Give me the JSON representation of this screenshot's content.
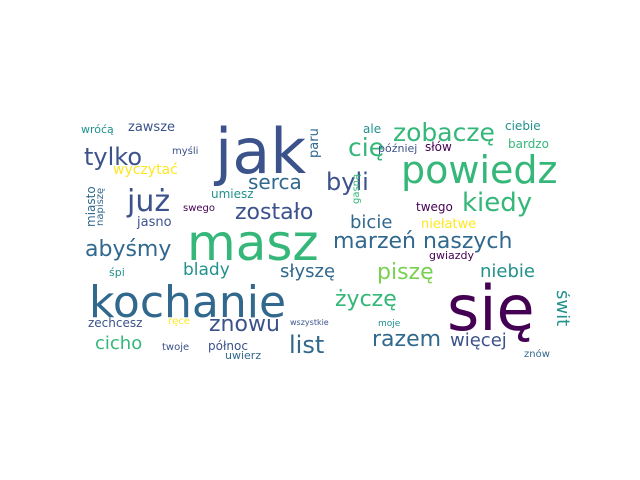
{
  "palette": {
    "dark_purple": "#440154",
    "indigo": "#3b528b",
    "blue": "#31688e",
    "teal": "#21918c",
    "green": "#35b779",
    "lime": "#7ad151",
    "yellow": "#fde725"
  },
  "words": [
    {
      "text": "jak",
      "color": "#3b528b"
    },
    {
      "text": "masz",
      "color": "#35b779"
    },
    {
      "text": "kochanie",
      "color": "#31688e"
    },
    {
      "text": "się",
      "color": "#440154"
    },
    {
      "text": "powiedz",
      "color": "#35b779"
    },
    {
      "text": "już",
      "color": "#3b528b"
    },
    {
      "text": "zobaczę",
      "color": "#35b779"
    },
    {
      "text": "tylko",
      "color": "#3b528b"
    },
    {
      "text": "cię",
      "color": "#35b779"
    },
    {
      "text": "byli",
      "color": "#3b528b"
    },
    {
      "text": "kiedy",
      "color": "#35b779"
    },
    {
      "text": "zostało",
      "color": "#3b528b"
    },
    {
      "text": "serca",
      "color": "#31688e"
    },
    {
      "text": "abyśmy",
      "color": "#31688e"
    },
    {
      "text": "marzeń naszych",
      "color": "#31688e"
    },
    {
      "text": "bicie",
      "color": "#31688e"
    },
    {
      "text": "piszę",
      "color": "#7ad151"
    },
    {
      "text": "życzę",
      "color": "#35b779"
    },
    {
      "text": "znowu",
      "color": "#3b528b"
    },
    {
      "text": "list",
      "color": "#31688e"
    },
    {
      "text": "razem",
      "color": "#31688e"
    },
    {
      "text": "cicho",
      "color": "#35b779"
    },
    {
      "text": "więcej",
      "color": "#3b528b"
    },
    {
      "text": "niebie",
      "color": "#21918c"
    },
    {
      "text": "słyszę",
      "color": "#31688e"
    },
    {
      "text": "blady",
      "color": "#21918c"
    },
    {
      "text": "świt",
      "color": "#21918c"
    },
    {
      "text": "zawsze",
      "color": "#3b528b"
    },
    {
      "text": "wróćą",
      "color": "#21918c"
    },
    {
      "text": "myśli",
      "color": "#3b528b"
    },
    {
      "text": "wyczytać",
      "color": "#fde725"
    },
    {
      "text": "miasto",
      "color": "#31688e"
    },
    {
      "text": "napiszę",
      "color": "#31688e"
    },
    {
      "text": "jasno",
      "color": "#3b528b"
    },
    {
      "text": "swego",
      "color": "#440154"
    },
    {
      "text": "umiesz",
      "color": "#21918c"
    },
    {
      "text": "paru",
      "color": "#31688e"
    },
    {
      "text": "ale",
      "color": "#21918c"
    },
    {
      "text": "później",
      "color": "#3b528b"
    },
    {
      "text": "słów",
      "color": "#440154"
    },
    {
      "text": "ciebie",
      "color": "#21918c"
    },
    {
      "text": "bardzo",
      "color": "#35b779"
    },
    {
      "text": "gasną",
      "color": "#35b779"
    },
    {
      "text": "twego",
      "color": "#440154"
    },
    {
      "text": "niełatwe",
      "color": "#fde725"
    },
    {
      "text": "gwiazdy",
      "color": "#440154"
    },
    {
      "text": "śpi",
      "color": "#21918c"
    },
    {
      "text": "zechcesz",
      "color": "#3b528b"
    },
    {
      "text": "ręce",
      "color": "#fde725"
    },
    {
      "text": "twoje",
      "color": "#3b528b"
    },
    {
      "text": "północ",
      "color": "#3b528b"
    },
    {
      "text": "uwierz",
      "color": "#31688e"
    },
    {
      "text": "wszystkie",
      "color": "#3b528b"
    },
    {
      "text": "moje",
      "color": "#21918c"
    },
    {
      "text": "znów",
      "color": "#31688e"
    }
  ]
}
